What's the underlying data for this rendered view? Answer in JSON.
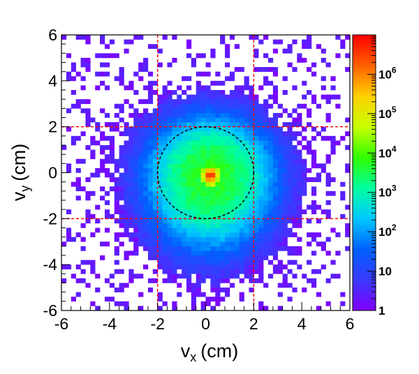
{
  "chart_data": {
    "type": "heatmap",
    "xlabel_main": "v",
    "xlabel_sub": "x",
    "xlabel_unit": "(cm)",
    "ylabel_main": "v",
    "ylabel_sub": "y",
    "ylabel_unit": "(cm)",
    "xlim": [
      -6,
      6
    ],
    "ylim": [
      -6,
      6
    ],
    "x_ticks": [
      -6,
      -4,
      -2,
      0,
      2,
      4,
      6
    ],
    "y_ticks": [
      -6,
      -4,
      -2,
      0,
      2,
      4,
      6
    ],
    "x_tick_labels": [
      "-6",
      "-4",
      "-2",
      "0",
      "2",
      "4",
      "6"
    ],
    "y_tick_labels": [
      "-6",
      "-4",
      "-2",
      "0",
      "2",
      "4",
      "6"
    ],
    "bin_width": 0.2,
    "peak": {
      "x": 0.2,
      "y": -0.1,
      "counts": 3000000
    },
    "distribution": "2D histogram of vertex position; dense core near origin, counts falling to ~1 at |v| ~ 4-5 cm, tail extending toward negative v_y",
    "colorbar": {
      "scale": "log",
      "range": [
        1,
        10000000
      ],
      "tick_labels": [
        {
          "value": 1,
          "base": "1",
          "exp": ""
        },
        {
          "value": 10,
          "base": "10",
          "exp": ""
        },
        {
          "value": 100,
          "base": "10",
          "exp": "2"
        },
        {
          "value": 1000,
          "base": "10",
          "exp": "3"
        },
        {
          "value": 10000,
          "base": "10",
          "exp": "4"
        },
        {
          "value": 100000,
          "base": "10",
          "exp": "5"
        },
        {
          "value": 1000000,
          "base": "10",
          "exp": "6"
        }
      ],
      "colors": [
        "#8000ff",
        "#3a3aff",
        "#0060ff",
        "#00c8ff",
        "#00ffa0",
        "#30ff00",
        "#c8ff00",
        "#ffd000",
        "#ff6000",
        "#ff0000"
      ]
    },
    "dashed_lines": {
      "color": "#ff0000",
      "x": [
        -2,
        2
      ],
      "y": [
        -2,
        2
      ]
    },
    "dashed_circle": {
      "cx": 0,
      "cy": 0,
      "r": 2,
      "color": "#000000"
    },
    "grid": false
  }
}
